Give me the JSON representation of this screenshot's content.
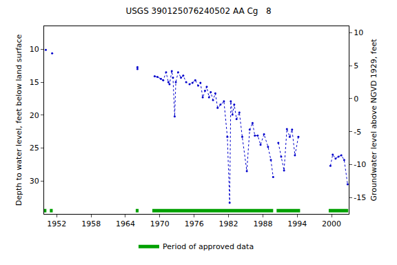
{
  "chart_data": {
    "type": "line",
    "title": "USGS 390125076240502 AA Cg   8",
    "y_label": "Depth to water level, feet below land surface",
    "y2_label": "Groundwater level above NGVD 1929, feet",
    "xlim": [
      1949.8,
      2003.0
    ],
    "xticks": [
      1952,
      1958,
      1964,
      1970,
      1976,
      1982,
      1988,
      1994,
      2000
    ],
    "ylim": [
      35,
      6.5
    ],
    "yticks": [
      10,
      15,
      20,
      25,
      30
    ],
    "y2lim": [
      -17.5,
      11
    ],
    "y2ticks": [
      10,
      5,
      0,
      -5,
      -10,
      -15
    ],
    "grid": false,
    "legend": "bottom",
    "series": [
      {
        "color": "#0000cc",
        "marker": "dot",
        "line_style": "dotted",
        "x": [
          1950.1,
          null,
          1951.2,
          null,
          1966.1,
          1966.1,
          null,
          1969.1,
          1969.6,
          1970.2,
          1970.6,
          1971.1,
          1971.5,
          1971.7,
          1972.1,
          1972.3,
          1972.6,
          1972.8,
          1973.2,
          1973.7,
          1974.1,
          1974.6,
          1975.2,
          1975.7,
          1976.2,
          1976.7,
          1977.1,
          1977.5,
          1977.9,
          1978.2,
          1978.6,
          1978.9,
          1979.3,
          1979.7,
          1980.1,
          1980.6,
          1981.2,
          1981.8,
          1982.2,
          1982.4,
          1982.7,
          1983.0,
          1983.4,
          1983.9,
          1984.4,
          1985.2,
          1985.7,
          1986.2,
          1986.6,
          1987.1,
          1987.6,
          1988.2,
          1988.9,
          1989.4,
          1989.8,
          null,
          1990.7,
          1991.2,
          1991.7,
          1992.2,
          1992.7,
          1993.1,
          1993.6,
          1994.2,
          null,
          1999.8,
          2000.2,
          2000.7,
          2001.2,
          2001.7,
          2002.2,
          2002.8
        ],
        "values": [
          10.1,
          null,
          10.6,
          null,
          12.7,
          13.0,
          null,
          14.1,
          14.2,
          14.5,
          14.7,
          13.5,
          15.0,
          15.3,
          13.3,
          14.3,
          20.2,
          15.0,
          13.5,
          14.3,
          14.0,
          15.0,
          15.3,
          15.1,
          14.7,
          15.5,
          15.1,
          17.3,
          16.3,
          15.7,
          17.3,
          16.5,
          17.7,
          16.7,
          18.9,
          18.4,
          17.9,
          23.3,
          33.3,
          17.9,
          19.9,
          18.4,
          20.6,
          19.6,
          23.3,
          28.5,
          22.2,
          21.2,
          23.1,
          23.1,
          24.5,
          22.9,
          24.8,
          26.8,
          29.4,
          null,
          24.2,
          26.3,
          28.4,
          22.1,
          23.3,
          22.2,
          26.1,
          23.3,
          null,
          27.7,
          26.0,
          26.6,
          26.3,
          26.1,
          26.8,
          30.5
        ]
      },
      {
        "name": "Period of approved data",
        "color": "#00a000",
        "line_style": "solid",
        "x": [
          1949.8,
          1950.2,
          null,
          1950.8,
          1951.3,
          null,
          1965.8,
          1966.3,
          null,
          1968.7,
          1989.8,
          null,
          1990.4,
          1994.5,
          null,
          1999.5,
          2002.9
        ],
        "values": [
          34.5,
          34.5,
          null,
          34.5,
          34.5,
          null,
          34.5,
          34.5,
          null,
          34.5,
          34.5,
          null,
          34.5,
          34.5,
          null,
          34.5,
          34.5
        ]
      }
    ]
  }
}
